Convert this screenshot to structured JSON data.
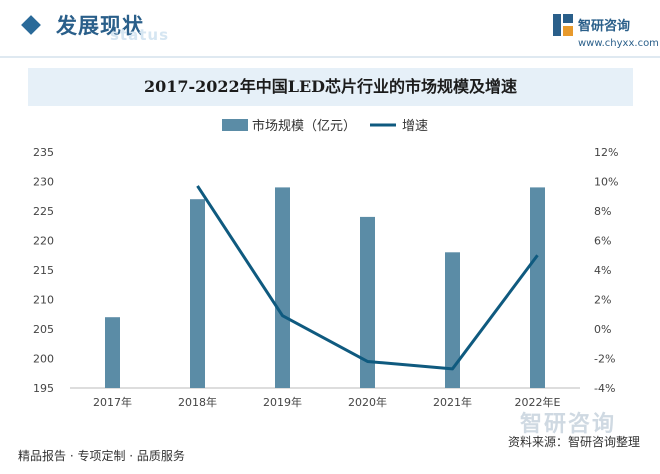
{
  "header": {
    "title": "发展现状",
    "ghost_text": "status",
    "brand_name": "智研咨询",
    "brand_url": "www.chyxx.com",
    "brand_bottom": "智研咨询"
  },
  "footer": {
    "left_text": "精品报告 · 专项定制 · 品质服务",
    "source_text": "资料来源：智研咨询整理"
  },
  "colors": {
    "bar": "#5b8ca6",
    "line": "#0f5a7f",
    "accent": "#2a5f8a"
  },
  "chart_data": {
    "type": "bar",
    "title": "2017-2022年中国LED芯片行业的市场规模及增速",
    "categories": [
      "2017年",
      "2018年",
      "2019年",
      "2020年",
      "2021年",
      "2022年E"
    ],
    "series": [
      {
        "name": "市场规模（亿元）",
        "type": "bar",
        "axis": "left",
        "values": [
          207,
          227,
          229,
          224,
          218,
          229
        ]
      },
      {
        "name": "增速",
        "type": "line",
        "axis": "right",
        "values": [
          null,
          9.7,
          0.9,
          -2.2,
          -2.7,
          5.0
        ]
      }
    ],
    "y_left": {
      "min": 195,
      "max": 235,
      "ticks": [
        "195",
        "200",
        "205",
        "210",
        "215",
        "220",
        "225",
        "230",
        "235"
      ]
    },
    "y_right": {
      "min": -4,
      "max": 12,
      "ticks": [
        "-4%",
        "-2%",
        "0%",
        "2%",
        "4%",
        "6%",
        "8%",
        "10%",
        "12%"
      ]
    },
    "legend_position": "top",
    "grid": false
  }
}
